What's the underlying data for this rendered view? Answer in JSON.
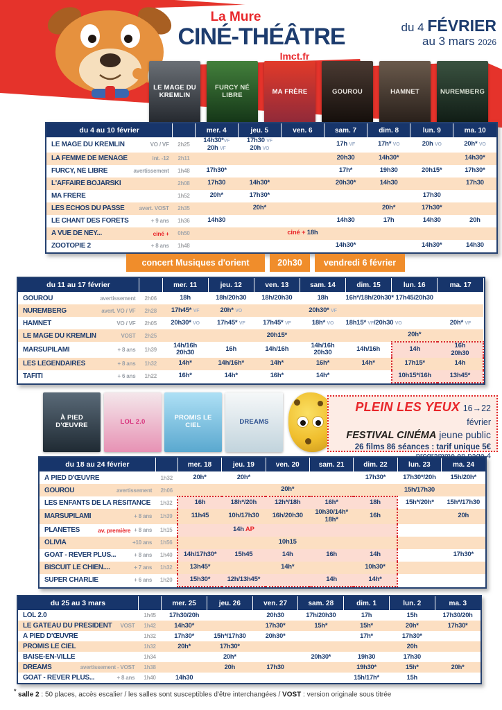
{
  "colors": {
    "navy": "#1d3c6e",
    "red": "#e8262a",
    "orange": "#f08d2b",
    "peach": "#fcdfc2",
    "festival_light": "#fcdcd2",
    "festival_dark": "#f9c0a8",
    "header_navy": "#17356b"
  },
  "header": {
    "city": "La Mure",
    "title": "CINÉ-THÉÂTRE",
    "site": "lmct.fr",
    "date1a": "du 4 ",
    "date1b": "FÉVRIER",
    "date2a": "au 3 mars ",
    "date2b": "2026",
    "logo": "PLEIN LES YEUX"
  },
  "posters_row1": [
    {
      "label": "LE MAGE DU KREMLIN",
      "bg1": "#6b7076",
      "bg2": "#24282e",
      "fg": "#ffffff"
    },
    {
      "label": "FURCY NÉ LIBRE",
      "bg1": "#43803c",
      "bg2": "#143517",
      "fg": "#e3ecdc"
    },
    {
      "label": "MA FRÈRE",
      "bg1": "#e23a29",
      "bg2": "#8f2a3a",
      "fg": "#ffffff"
    },
    {
      "label": "GOUROU",
      "bg1": "#4a3a32",
      "bg2": "#140e0b",
      "fg": "#e8e4de"
    },
    {
      "label": "HAMNET",
      "bg1": "#6a5a4c",
      "bg2": "#281f1a",
      "fg": "#f0ece6"
    },
    {
      "label": "NUREMBERG",
      "bg1": "#3a5240",
      "bg2": "#101c15",
      "fg": "#dfe5d8"
    }
  ],
  "posters_row2": [
    {
      "label": "À PIED D'ŒUVRE",
      "bg1": "#5a6a78",
      "bg2": "#1f2a33",
      "fg": "#ffffff"
    },
    {
      "label": "LOL 2.0",
      "bg1": "#f4e7eb",
      "bg2": "#e792b4",
      "fg": "#d8327c"
    },
    {
      "label": "PROMIS LE CIEL",
      "bg1": "#aee0f5",
      "bg2": "#5aa8cf",
      "fg": "#ffffff"
    },
    {
      "label": "DREAMS",
      "bg1": "#f6f8f9",
      "bg2": "#c2d4dd",
      "fg": "#2b4f8e"
    },
    {
      "label": "",
      "type": "plush"
    }
  ],
  "concert": {
    "segments": [
      "concert  Musiques d'orient",
      "20h30",
      "vendredi 6 février"
    ]
  },
  "festival_box": {
    "logo": "PLEIN LES YEUX",
    "dates": "16→22 février",
    "line2_bold": "FESTIVAL CINÉMA",
    "line2_rest": " jeune public",
    "line3": "26 films 86 séances : tarif unique 5€",
    "line4": "programme en page 4"
  },
  "footnote": {
    "star": "* ",
    "bold1": "salle 2",
    "text1": " : 50 places, accès escalier / les salles sont susceptibles d'être interchangées / ",
    "bold2": "VOST",
    "text2": " : version originale sous titrée"
  },
  "tables": [
    {
      "week": "du 4 au 10 février",
      "days": [
        "mer. 4",
        "jeu. 5",
        "ven. 6",
        "sam. 7",
        "dim. 8",
        "lun. 9",
        "ma. 10"
      ],
      "rows": [
        {
          "title": "LE MAGE DU KREMLIN",
          "meta": "VO / VF",
          "dur": "2h25",
          "cells": [
            "14h30*`VF`|20h `VF`",
            "17h30 `VF`|20h `VO`",
            "",
            "17h `VF`",
            "17h* `VO`",
            "20h `VO`",
            "20h* `VO`"
          ]
        },
        {
          "title": "LA FEMME DE MÉNAGE",
          "meta": "int. -12",
          "dur": "2h11",
          "cells": [
            "",
            "",
            "",
            "20h30",
            "14h30*",
            "",
            "14h30*"
          ]
        },
        {
          "title": "FURCY, NÉ LIBRE",
          "meta": "avertissement",
          "dur": "1h48",
          "cells": [
            "17h30*",
            "",
            "",
            "17h*",
            "19h30",
            "20h15*",
            "17h30*"
          ]
        },
        {
          "title": "L'AFFAIRE BOJARSKI",
          "meta": "",
          "dur": "2h08",
          "cells": [
            "17h30",
            "14h30*",
            "",
            "20h30*",
            "14h30",
            "",
            "17h30"
          ]
        },
        {
          "title": "MA FRÈRE",
          "meta": "",
          "dur": "1h52",
          "cells": [
            "20h*",
            "17h30*",
            "",
            "",
            "",
            "17h30",
            ""
          ]
        },
        {
          "title": "LES ÉCHOS DU PASSÉ",
          "meta": "avert. VOST",
          "dur": "2h35",
          "cells": [
            "",
            "20h*",
            "",
            "",
            "20h*",
            "17h30*",
            ""
          ]
        },
        {
          "title": "LE CHANT DES FORÊTS",
          "meta": "+ 9 ans",
          "dur": "1h36",
          "cells": [
            "14h30",
            "",
            "",
            "14h30",
            "17h",
            "14h30",
            "20h"
          ]
        },
        {
          "title": "A VUE DE NEY...",
          "metaRed": "ciné +",
          "meta": "",
          "dur": "0h50",
          "cells": [
            "",
            "",
            "§ciné +§ 18h",
            "",
            "",
            "",
            ""
          ]
        },
        {
          "title": "ZOOTOPIE 2",
          "meta": "+ 8 ans",
          "dur": "1h48",
          "cells": [
            "",
            "",
            "",
            "14h30*",
            "",
            "14h30*",
            "14h30"
          ]
        }
      ]
    },
    {
      "week": "du 11 au 17 février",
      "days": [
        "mer. 11",
        "jeu. 12",
        "ven. 13",
        "sam. 14",
        "dim. 15",
        "lun. 16",
        "ma. 17"
      ],
      "festival": {
        "colStart": 5,
        "colEnd": 6,
        "rowStart": 4,
        "rowEnd": 6
      },
      "rows": [
        {
          "title": "GOUROU",
          "meta": "avertissement",
          "dur": "2h06",
          "cells": [
            "18h",
            "18h/20h30",
            "18h/20h30",
            "18h",
            "16h*/18h/20h30*",
            "17h45/20h30",
            ""
          ]
        },
        {
          "title": "NUREMBERG",
          "meta": "avert. VO / VF",
          "dur": "2h28",
          "cells": [
            "17h45* `VF`",
            "20h* `VO`",
            "",
            "20h30* `VF`",
            "",
            "",
            ""
          ]
        },
        {
          "title": "HAMNET",
          "meta": "VO / VF",
          "dur": "2h05",
          "cells": [
            "20h30* `VO`",
            "17h45* `VF`",
            "17h45* `VF`",
            "18h* `VO`",
            "18h15* `VF`/20h30 `VO`",
            "",
            "20h* `VF`"
          ]
        },
        {
          "title": "LE MAGE DU KREMLIN",
          "meta": "VOST",
          "dur": "2h25",
          "cells": [
            "",
            "",
            "20h15*",
            "",
            "",
            "20h*",
            ""
          ]
        },
        {
          "title": "MARSUPILAMI",
          "meta": "+ 8 ans",
          "dur": "1h39",
          "cells": [
            "14h/16h|20h30",
            "16h",
            "14h/16h",
            "14h/16h|20h30",
            "14h/16h",
            "14h",
            "16h|20h30"
          ]
        },
        {
          "title": "LES LÉGENDAIRES",
          "meta": "+ 8 ans",
          "dur": "1h32",
          "cells": [
            "14h*",
            "14h/16h*",
            "14h*",
            "16h*",
            "14h*",
            "17h15*",
            "14h"
          ]
        },
        {
          "title": "TAFITI",
          "meta": "+ 6 ans",
          "dur": "1h22",
          "cells": [
            "16h*",
            "14h*",
            "16h*",
            "14h*",
            "",
            "10h15*/16h",
            "13h45*"
          ]
        }
      ]
    },
    {
      "week": "du 18 au 24 février",
      "days": [
        "mer. 18",
        "jeu. 19",
        "ven. 20",
        "sam. 21",
        "dim. 22",
        "lun. 23",
        "ma. 24"
      ],
      "festival": {
        "colStart": 0,
        "colEnd": 4,
        "rowStart": 2,
        "rowEnd": 8
      },
      "rows": [
        {
          "title": "À PIED D'ŒUVRE",
          "meta": "",
          "dur": "1h32",
          "cells": [
            "20h*",
            "20h*",
            "",
            "",
            "17h30*",
            "17h30*/20h",
            "15h/20h*"
          ]
        },
        {
          "title": "GOUROU",
          "meta": "avertissement",
          "dur": "2h06",
          "cells": [
            "",
            "",
            "20h*",
            "",
            "",
            "15h/17h30",
            ""
          ]
        },
        {
          "title": "LES ENFANTS DE LA RÉSITANCE",
          "meta": "",
          "dur": "1h32",
          "cells": [
            "16h",
            "18h*/20h",
            "12h*/18h",
            "16h*",
            "18h",
            "15h*/20h*",
            "15h*/17h30"
          ]
        },
        {
          "title": "MARSUPILAMI",
          "meta": "+ 8 ans",
          "dur": "1h39",
          "cells": [
            "11h45",
            "10h/17h30",
            "16h/20h30",
            "10h30/14h*|18h*",
            "16h",
            "",
            "20h"
          ]
        },
        {
          "title": "PLANÈTES",
          "metaRed": "av. première",
          "meta": "+ 8 ans",
          "dur": "1h15",
          "cells": [
            "",
            "14h §AP§",
            "",
            "",
            "",
            "",
            ""
          ]
        },
        {
          "title": "OLIVIA",
          "meta": "+10 ans",
          "dur": "1h56",
          "cells": [
            "",
            "",
            "10h15",
            "",
            "",
            "",
            ""
          ]
        },
        {
          "title": "GOAT - RÊVER PLUS...",
          "meta": "+ 8 ans",
          "dur": "1h40",
          "cells": [
            "14h/17h30*",
            "15h45",
            "14h",
            "16h",
            "14h",
            "",
            "17h30*"
          ]
        },
        {
          "title": "BISCUIT LE CHIEN....",
          "meta": "+ 7 ans",
          "dur": "1h32",
          "cells": [
            "13h45*",
            "",
            "14h*",
            "",
            "10h30*",
            "",
            ""
          ]
        },
        {
          "title": "SUPER CHARLIE",
          "meta": "+ 6 ans",
          "dur": "1h20",
          "cells": [
            "15h30*",
            "12h/13h45*",
            "",
            "14h",
            "14h*",
            "",
            ""
          ]
        }
      ]
    },
    {
      "week": "du 25 au 3 mars",
      "days": [
        "mer. 25",
        "jeu. 26",
        "ven. 27",
        "sam. 28",
        "dim. 1",
        "lun. 2",
        "ma. 3"
      ],
      "rows": [
        {
          "title": "LOL 2.0",
          "meta": "",
          "dur": "1h45",
          "cells": [
            "17h30/20h",
            "",
            "20h30",
            "17h/20h30",
            "17h",
            "15h",
            "17h30/20h"
          ]
        },
        {
          "title": "LE GÂTEAU DU PRÉSIDENT",
          "meta": "VOST",
          "dur": "1h42",
          "cells": [
            "14h30*",
            "",
            "17h30*",
            "15h*",
            "15h*",
            "20h*",
            "17h30*"
          ]
        },
        {
          "title": "À PIED D'ŒUVRE",
          "meta": "",
          "dur": "1h32",
          "cells": [
            "17h30*",
            "15h*/17h30",
            "20h30*",
            "",
            "17h*",
            "17h30*",
            ""
          ]
        },
        {
          "title": "PROMIS LE CIEL",
          "meta": "",
          "dur": "1h32",
          "cells": [
            "20h*",
            "17h30*",
            "",
            "",
            "",
            "20h",
            ""
          ]
        },
        {
          "title": "BAISE-EN-VILLE",
          "meta": "",
          "dur": "1h34",
          "cells": [
            "",
            "20h*",
            "",
            "20h30*",
            "19h30",
            "17h30",
            ""
          ]
        },
        {
          "title": "DREAMS",
          "meta": "avertissement - VOST",
          "dur": "1h38",
          "cells": [
            "",
            "20h",
            "17h30",
            "",
            "19h30*",
            "15h*",
            "20h*"
          ]
        },
        {
          "title": "GOAT - RÊVER PLUS...",
          "meta": "+ 8 ans",
          "dur": "1h40",
          "cells": [
            "14h30",
            "",
            "",
            "",
            "15h/17h*",
            "15h",
            ""
          ]
        }
      ]
    }
  ]
}
